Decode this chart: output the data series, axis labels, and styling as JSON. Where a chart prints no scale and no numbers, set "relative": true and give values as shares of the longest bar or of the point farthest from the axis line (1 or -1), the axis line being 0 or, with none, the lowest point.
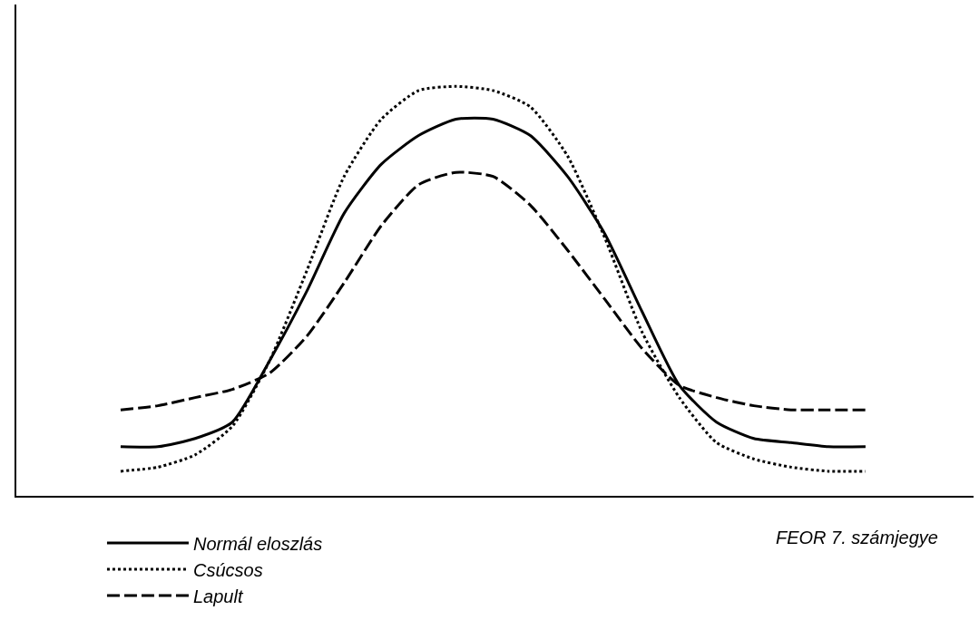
{
  "chart_data": {
    "type": "line",
    "relative": true,
    "xlabel": "FEOR 7. számjegye",
    "categories": [
      null,
      null,
      null,
      null,
      null,
      null,
      null,
      null,
      null,
      null,
      null,
      null,
      null,
      null,
      null,
      null,
      null,
      null,
      null,
      null,
      null
    ],
    "legend": "bottom left",
    "marker": "none",
    "series": [
      {
        "name": "Normál eloszlás",
        "color": "#000000",
        "line_style": "solid",
        "values": [
          0.12,
          0.12,
          0.14,
          0.18,
          0.33,
          0.5,
          0.69,
          0.81,
          0.88,
          0.92,
          0.92,
          0.88,
          0.78,
          0.64,
          0.45,
          0.27,
          0.18,
          0.14,
          0.13,
          0.12,
          0.12
        ]
      },
      {
        "name": "Csúcsos",
        "color": "#000000",
        "line_style": "dotted",
        "values": [
          0.06,
          0.07,
          0.1,
          0.17,
          0.33,
          0.55,
          0.78,
          0.92,
          0.99,
          1,
          0.99,
          0.95,
          0.83,
          0.63,
          0.4,
          0.24,
          0.13,
          0.09,
          0.07,
          0.06,
          0.06
        ]
      },
      {
        "name": "Lapult",
        "color": "#000000",
        "line_style": "dashed",
        "values": [
          0.21,
          0.22,
          0.24,
          0.26,
          0.3,
          0.39,
          0.52,
          0.66,
          0.76,
          0.79,
          0.78,
          0.71,
          0.6,
          0.48,
          0.36,
          0.27,
          0.24,
          0.22,
          0.21,
          0.21,
          0.21
        ]
      }
    ]
  }
}
